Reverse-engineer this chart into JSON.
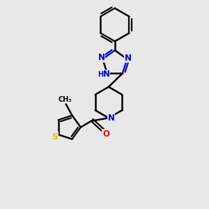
{
  "background_color": "#e8e8e8",
  "bond_color": "#000000",
  "N_color": "#0000cc",
  "S_color": "#cccc00",
  "O_color": "#ff0000",
  "figsize": [
    3.0,
    3.0
  ],
  "dpi": 100,
  "xlim": [
    0,
    10
  ],
  "ylim": [
    0,
    10
  ]
}
